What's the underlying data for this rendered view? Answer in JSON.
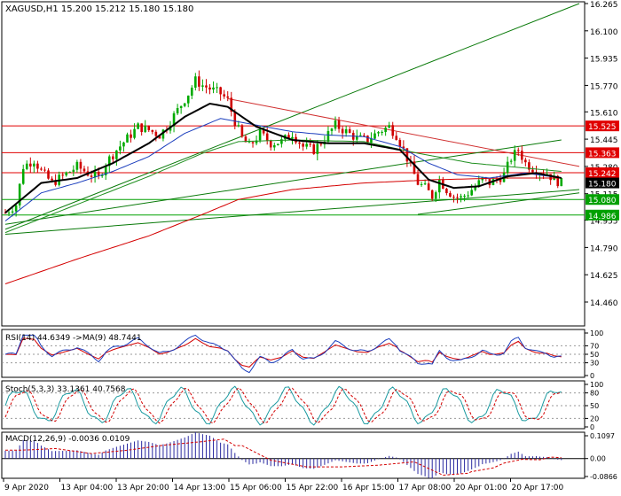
{
  "main": {
    "header": "XAGUSD,H1  15.200 15.212 15.180 15.180",
    "ylim": [
      14.46,
      16.265
    ],
    "yticks": [
      "16.265",
      "16.100",
      "15.935",
      "15.770",
      "15.610",
      "15.445",
      "15.280",
      "15.115",
      "14.955",
      "14.790",
      "14.625",
      "14.460"
    ],
    "hlines": [
      {
        "label": "15.525",
        "value": 15.525,
        "color": "#e00000"
      },
      {
        "label": "15.363",
        "value": 15.363,
        "color": "#e00000"
      },
      {
        "label": "15.242",
        "value": 15.242,
        "color": "#e00000"
      },
      {
        "label": "15.080",
        "value": 15.08,
        "color": "#00a000"
      },
      {
        "label": "14.986",
        "value": 14.986,
        "color": "#00a000"
      }
    ],
    "current_price": {
      "label": "15.180",
      "value": 15.18
    },
    "trendlines": [
      {
        "from": [
          0,
          14.9
        ],
        "to": [
          160,
          16.265
        ],
        "color": "#0a7a0a"
      },
      {
        "from": [
          0,
          14.93
        ],
        "to": [
          155,
          15.44
        ],
        "color": "#0a7a0a"
      },
      {
        "from": [
          0,
          14.87
        ],
        "to": [
          160,
          15.14
        ],
        "color": "#0a7a0a"
      },
      {
        "from": [
          62,
          15.69
        ],
        "to": [
          160,
          15.28
        ],
        "color": "#d03030"
      },
      {
        "from": [
          115,
          14.99
        ],
        "to": [
          160,
          15.12
        ],
        "color": "#0a7a0a"
      }
    ],
    "series_colors": {
      "ma_black": "#000000",
      "ma_blue": "#1a3dbd",
      "ma_green": "#1f8f1f",
      "ma_red": "#d40000",
      "candle_up": "#00aa00",
      "candle_down": "#d00000"
    }
  },
  "rsi": {
    "header": "RSI(14) 44.6349  ->MA(9) 48.7441",
    "ylim": [
      0,
      100
    ],
    "yticks": [
      "100",
      "70",
      "50",
      "30",
      "0"
    ]
  },
  "stoch": {
    "header": "Stoch(5,3,3) 33.1361 40.7568",
    "ylim": [
      0,
      100
    ],
    "yticks": [
      "100",
      "80",
      "50",
      "20",
      "0"
    ]
  },
  "macd": {
    "header": "MACD(12,26,9) -0.0036 0.0109",
    "ylim": [
      -0.0866,
      0.1097
    ],
    "yticks": [
      "0.1097",
      "0.00",
      "-0.0866"
    ]
  },
  "xaxis": {
    "labels": [
      "9 Apr 2020",
      "13 Apr 04:00",
      "13 Apr 20:00",
      "14 Apr 13:00",
      "15 Apr 06:00",
      "15 Apr 22:00",
      "16 Apr 15:00",
      "17 Apr 08:00",
      "20 Apr 01:00",
      "20 Apr 17:00"
    ]
  },
  "chart_data": {
    "type": "candlestick",
    "symbol": "XAGUSD",
    "timeframe": "H1",
    "anchors": {
      "price": [
        [
          0,
          15.0
        ],
        [
          3,
          15.05
        ],
        [
          5,
          15.28
        ],
        [
          8,
          15.32
        ],
        [
          10,
          15.25
        ],
        [
          13,
          15.18
        ],
        [
          16,
          15.22
        ],
        [
          20,
          15.28
        ],
        [
          23,
          15.24
        ],
        [
          26,
          15.21
        ],
        [
          28,
          15.3
        ],
        [
          31,
          15.38
        ],
        [
          34,
          15.45
        ],
        [
          37,
          15.52
        ],
        [
          40,
          15.5
        ],
        [
          43,
          15.47
        ],
        [
          45,
          15.52
        ],
        [
          48,
          15.62
        ],
        [
          51,
          15.72
        ],
        [
          53,
          15.8
        ],
        [
          55,
          15.77
        ],
        [
          57,
          15.75
        ],
        [
          60,
          15.72
        ],
        [
          62,
          15.68
        ],
        [
          64,
          15.55
        ],
        [
          66,
          15.45
        ],
        [
          68,
          15.4
        ],
        [
          71,
          15.48
        ],
        [
          74,
          15.42
        ],
        [
          77,
          15.43
        ],
        [
          80,
          15.48
        ],
        [
          83,
          15.4
        ],
        [
          86,
          15.38
        ],
        [
          89,
          15.45
        ],
        [
          92,
          15.53
        ],
        [
          95,
          15.49
        ],
        [
          98,
          15.45
        ],
        [
          101,
          15.44
        ],
        [
          104,
          15.49
        ],
        [
          107,
          15.52
        ],
        [
          109,
          15.47
        ],
        [
          111,
          15.38
        ],
        [
          113,
          15.28
        ],
        [
          115,
          15.18
        ],
        [
          117,
          15.15
        ],
        [
          119,
          15.1
        ],
        [
          121,
          15.2
        ],
        [
          123,
          15.14
        ],
        [
          125,
          15.1
        ],
        [
          127,
          15.09
        ],
        [
          129,
          15.12
        ],
        [
          131,
          15.16
        ],
        [
          133,
          15.2
        ],
        [
          135,
          15.18
        ],
        [
          137,
          15.2
        ],
        [
          139,
          15.23
        ],
        [
          141,
          15.33
        ],
        [
          143,
          15.38
        ],
        [
          145,
          15.3
        ],
        [
          147,
          15.27
        ],
        [
          149,
          15.25
        ],
        [
          151,
          15.24
        ],
        [
          153,
          15.2
        ],
        [
          155,
          15.18
        ]
      ],
      "ma_black": [
        [
          0,
          15.0
        ],
        [
          10,
          15.18
        ],
        [
          20,
          15.21
        ],
        [
          30,
          15.3
        ],
        [
          40,
          15.42
        ],
        [
          50,
          15.58
        ],
        [
          57,
          15.66
        ],
        [
          62,
          15.64
        ],
        [
          70,
          15.52
        ],
        [
          80,
          15.44
        ],
        [
          90,
          15.42
        ],
        [
          100,
          15.42
        ],
        [
          110,
          15.38
        ],
        [
          118,
          15.2
        ],
        [
          125,
          15.15
        ],
        [
          132,
          15.16
        ],
        [
          140,
          15.22
        ],
        [
          148,
          15.24
        ],
        [
          155,
          15.21
        ]
      ],
      "ma_blue": [
        [
          0,
          14.95
        ],
        [
          10,
          15.12
        ],
        [
          20,
          15.18
        ],
        [
          30,
          15.25
        ],
        [
          40,
          15.34
        ],
        [
          50,
          15.48
        ],
        [
          60,
          15.57
        ],
        [
          70,
          15.53
        ],
        [
          80,
          15.49
        ],
        [
          90,
          15.47
        ],
        [
          100,
          15.46
        ],
        [
          110,
          15.4
        ],
        [
          118,
          15.3
        ],
        [
          126,
          15.23
        ],
        [
          135,
          15.21
        ],
        [
          145,
          15.24
        ],
        [
          155,
          15.21
        ]
      ],
      "ma_green": [
        [
          0,
          14.88
        ],
        [
          20,
          15.05
        ],
        [
          40,
          15.22
        ],
        [
          55,
          15.36
        ],
        [
          65,
          15.43
        ],
        [
          80,
          15.44
        ],
        [
          100,
          15.43
        ],
        [
          115,
          15.36
        ],
        [
          130,
          15.3
        ],
        [
          145,
          15.27
        ],
        [
          155,
          15.25
        ]
      ],
      "ma_red": [
        [
          0,
          14.57
        ],
        [
          20,
          14.72
        ],
        [
          40,
          14.86
        ],
        [
          55,
          14.99
        ],
        [
          65,
          15.08
        ],
        [
          80,
          15.14
        ],
        [
          100,
          15.18
        ],
        [
          120,
          15.2
        ],
        [
          140,
          15.21
        ],
        [
          155,
          15.21
        ]
      ]
    }
  }
}
